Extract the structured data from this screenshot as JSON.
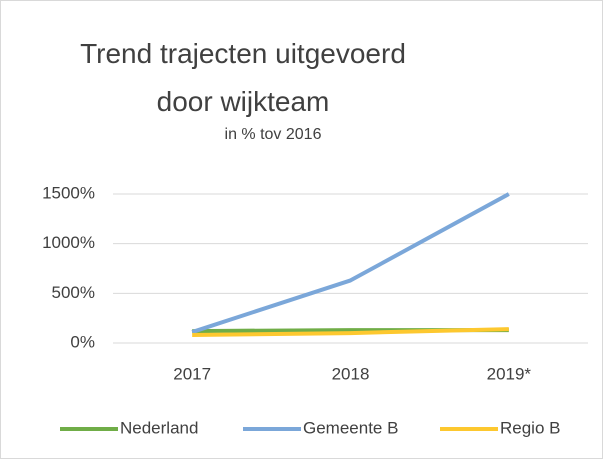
{
  "chart_data": {
    "type": "line",
    "title": "Trend trajecten uitgevoerd door wijkteam",
    "subtitle": "in % tov 2016",
    "categories": [
      "2017",
      "2018",
      "2019*"
    ],
    "series": [
      {
        "name": "Nederland",
        "color": "#70ad47",
        "values": [
          120,
          130,
          130
        ]
      },
      {
        "name": "Gemeente B",
        "color": "#7ba7d9",
        "values": [
          110,
          630,
          1500
        ]
      },
      {
        "name": "Regio B",
        "color": "#fdc82f",
        "values": [
          80,
          100,
          140
        ]
      }
    ],
    "ylim": [
      0,
      1500
    ],
    "yticks": [
      {
        "value": 0,
        "label": "0%"
      },
      {
        "value": 500,
        "label": "500%"
      },
      {
        "value": 1000,
        "label": "1000%"
      },
      {
        "value": 1500,
        "label": "1500%"
      }
    ],
    "grid": true,
    "legend": "bottom"
  }
}
